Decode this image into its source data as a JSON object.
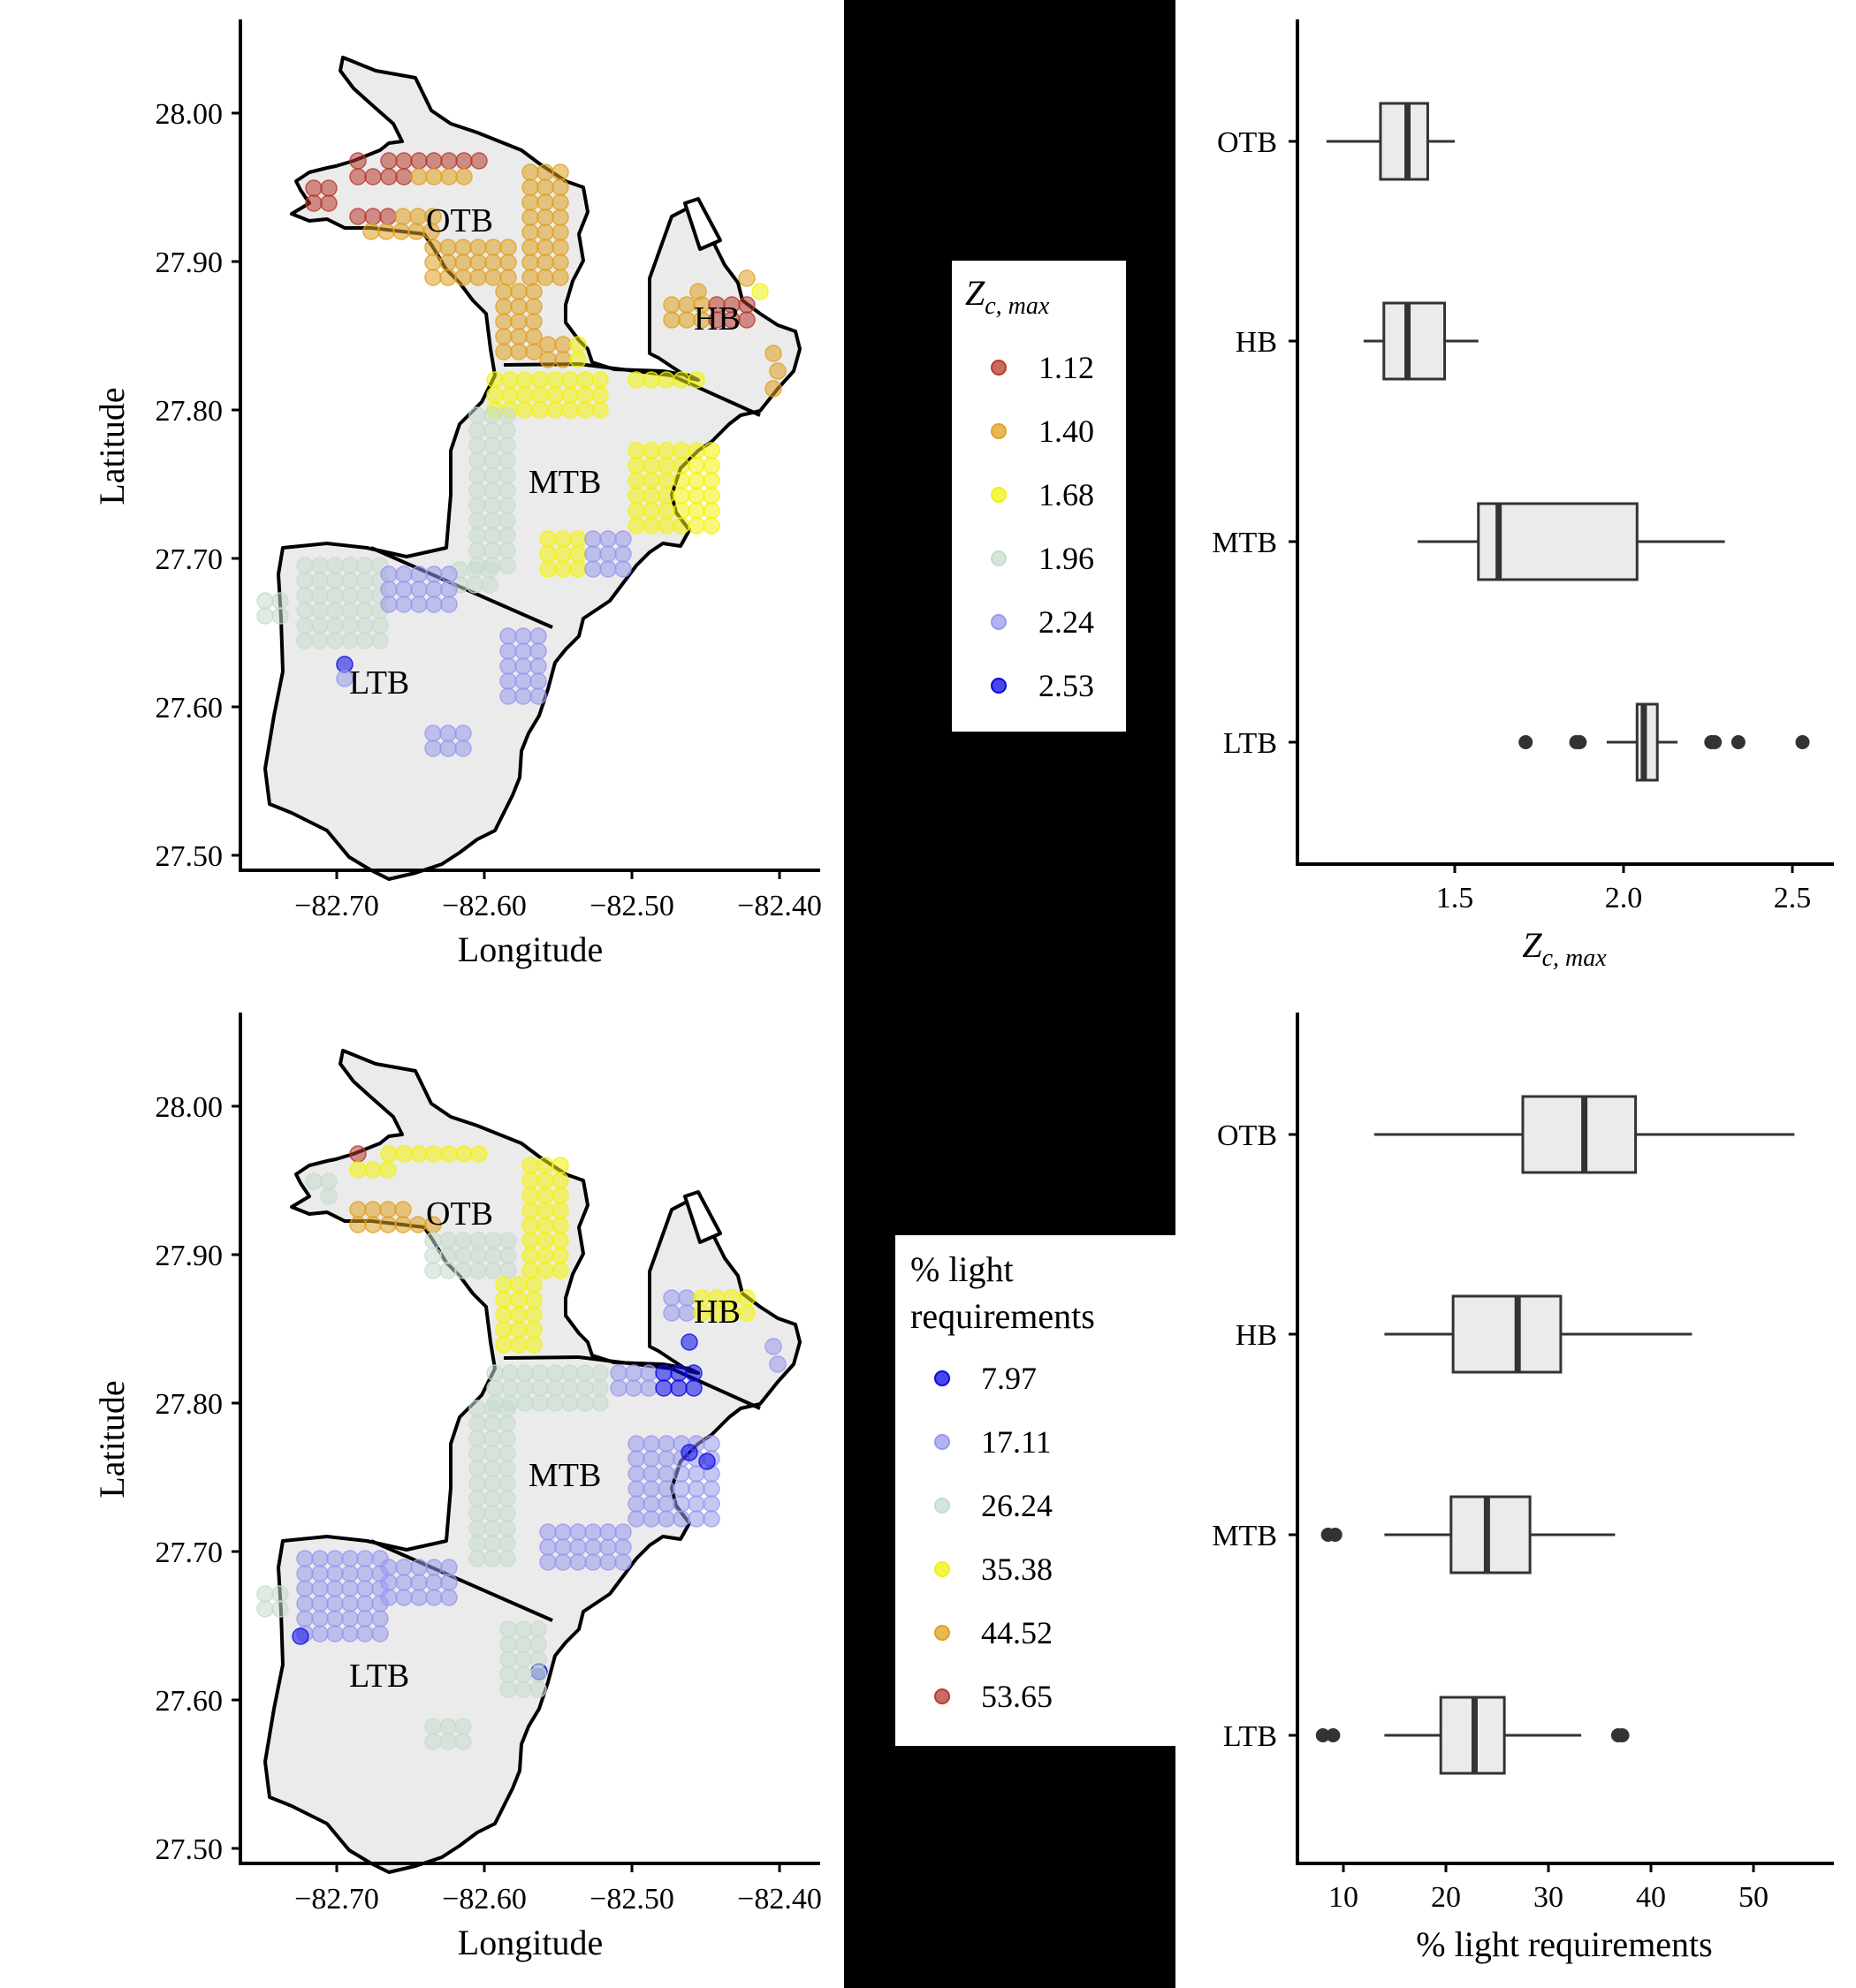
{
  "chart_data": [
    {
      "type": "scatter",
      "subtype": "map",
      "xlabel": "Longitude",
      "ylabel": "Latitude",
      "x_ticks": [
        "−82.70",
        "−82.60",
        "−82.50",
        "−82.40"
      ],
      "y_ticks": [
        "27.50",
        "27.60",
        "27.70",
        "27.80",
        "27.90",
        "28.00"
      ],
      "xlim": [
        -82.76,
        -82.38
      ],
      "ylim": [
        27.49,
        28.06
      ],
      "region_labels": [
        "OTB",
        "HB",
        "MTB",
        "LTB"
      ],
      "legend": {
        "title_main": "Z",
        "title_sub": "c, max",
        "position": "right",
        "items": [
          {
            "label": "1.12",
            "color": "#b83a2e"
          },
          {
            "label": "1.40",
            "color": "#e0a020"
          },
          {
            "label": "1.68",
            "color": "#f2f20a"
          },
          {
            "label": "1.96",
            "color": "#c6dccc"
          },
          {
            "label": "2.24",
            "color": "#9999ee"
          },
          {
            "label": "2.53",
            "color": "#0a0ae6"
          }
        ]
      }
    },
    {
      "type": "box",
      "orientation": "horizontal",
      "xlabel_main": "Z",
      "xlabel_sub": "c, max",
      "categories": [
        "OTB",
        "HB",
        "MTB",
        "LTB"
      ],
      "x_ticks": [
        "1.5",
        "2.0",
        "2.5"
      ],
      "xlim": [
        1.08,
        2.6
      ],
      "boxes": [
        {
          "category": "OTB",
          "whisker_low": 1.12,
          "q1": 1.28,
          "median": 1.36,
          "q3": 1.42,
          "whisker_high": 1.5,
          "outliers": []
        },
        {
          "category": "HB",
          "whisker_low": 1.23,
          "q1": 1.29,
          "median": 1.36,
          "q3": 1.47,
          "whisker_high": 1.57,
          "outliers": []
        },
        {
          "category": "MTB",
          "whisker_low": 1.39,
          "q1": 1.57,
          "median": 1.63,
          "q3": 2.04,
          "whisker_high": 2.3,
          "outliers": []
        },
        {
          "category": "LTB",
          "whisker_low": 1.95,
          "q1": 2.04,
          "median": 2.06,
          "q3": 2.1,
          "whisker_high": 2.16,
          "outliers": [
            1.71,
            1.86,
            1.87,
            2.26,
            2.27,
            2.34,
            2.53
          ]
        }
      ]
    },
    {
      "type": "scatter",
      "subtype": "map",
      "xlabel": "Longitude",
      "ylabel": "Latitude",
      "x_ticks": [
        "−82.70",
        "−82.60",
        "−82.50",
        "−82.40"
      ],
      "y_ticks": [
        "27.50",
        "27.60",
        "27.70",
        "27.80",
        "27.90",
        "28.00"
      ],
      "xlim": [
        -82.76,
        -82.38
      ],
      "ylim": [
        27.49,
        28.06
      ],
      "region_labels": [
        "OTB",
        "HB",
        "MTB",
        "LTB"
      ],
      "legend": {
        "title_line1": "% light",
        "title_line2": "requirements",
        "position": "right",
        "items": [
          {
            "label": "7.97",
            "color": "#0a0ae6"
          },
          {
            "label": "17.11",
            "color": "#9999ee"
          },
          {
            "label": "26.24",
            "color": "#c6dccc"
          },
          {
            "label": "35.38",
            "color": "#f2f20a"
          },
          {
            "label": "44.52",
            "color": "#e0a020"
          },
          {
            "label": "53.65",
            "color": "#b83a2e"
          }
        ]
      }
    },
    {
      "type": "box",
      "orientation": "horizontal",
      "xlabel": "% light requirements",
      "categories": [
        "OTB",
        "HB",
        "MTB",
        "LTB"
      ],
      "x_ticks": [
        "10",
        "20",
        "30",
        "40",
        "50"
      ],
      "xlim": [
        5.5,
        56
      ],
      "boxes": [
        {
          "category": "OTB",
          "whisker_low": 13,
          "q1": 27.5,
          "median": 33.5,
          "q3": 38.5,
          "whisker_high": 54,
          "outliers": []
        },
        {
          "category": "HB",
          "whisker_low": 14,
          "q1": 20.7,
          "median": 27,
          "q3": 31.2,
          "whisker_high": 44,
          "outliers": []
        },
        {
          "category": "MTB",
          "whisker_low": 14,
          "q1": 20.5,
          "median": 24,
          "q3": 28.2,
          "whisker_high": 36.5,
          "outliers": [
            8.5,
            9.2
          ]
        },
        {
          "category": "LTB",
          "whisker_low": 14,
          "q1": 19.5,
          "median": 22.8,
          "q3": 25.7,
          "whisker_high": 33.2,
          "outliers": [
            8.0,
            9.0,
            36.8,
            37.2
          ]
        }
      ]
    }
  ]
}
